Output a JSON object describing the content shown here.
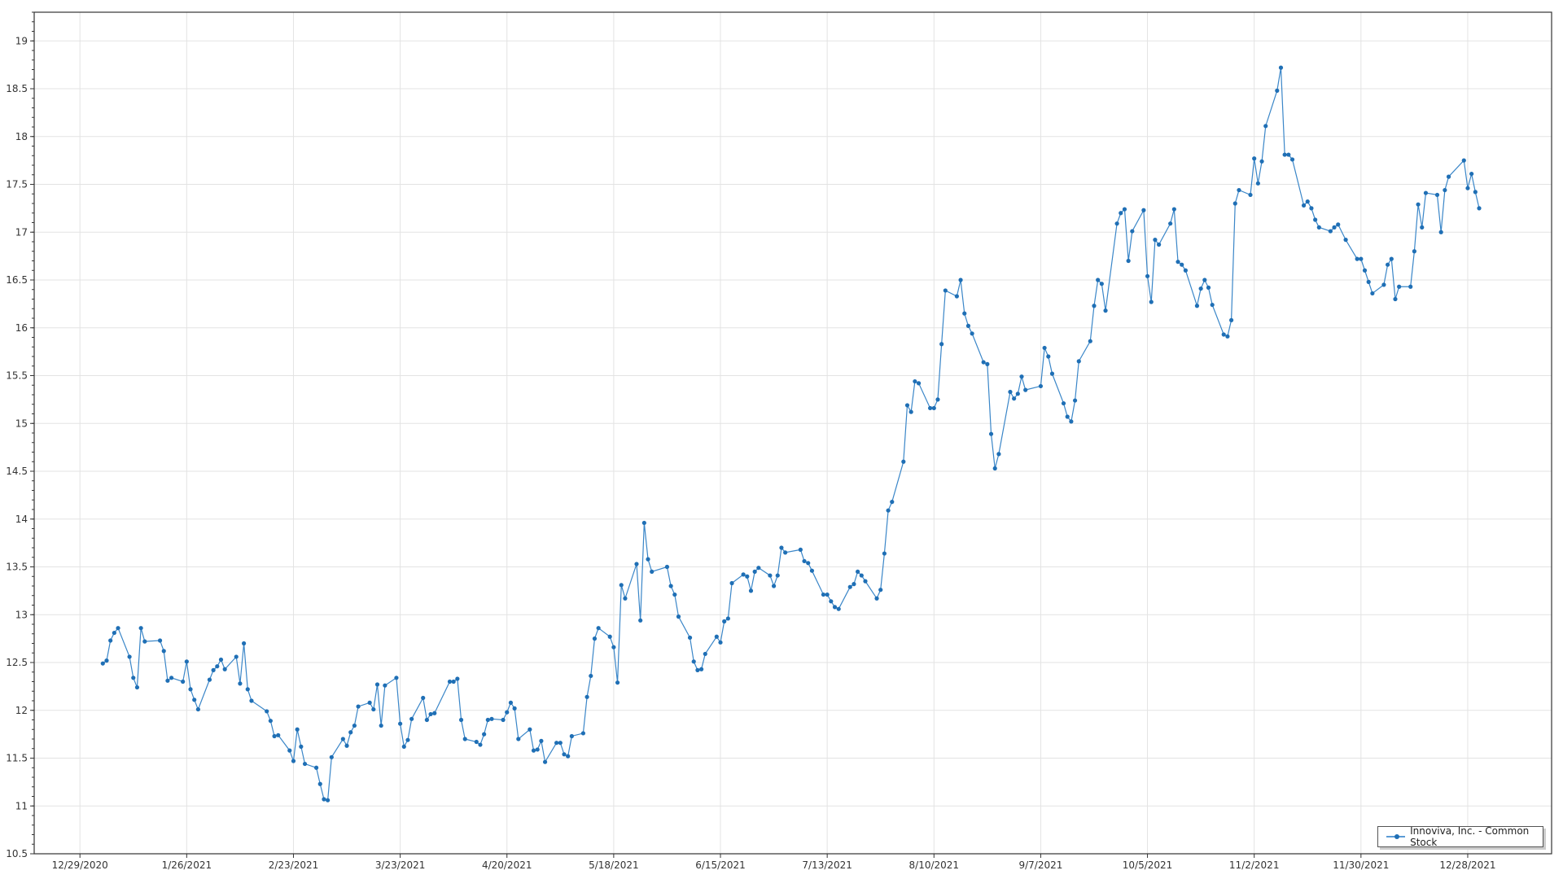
{
  "chart_data": {
    "type": "line",
    "title": "",
    "xlabel": "",
    "ylabel": "",
    "xlim": [
      "2020-12-17",
      "2022-01-19"
    ],
    "ylim": [
      10.5,
      19.3
    ],
    "grid": true,
    "legend_position": "bottom-right",
    "x_tick_labels": [
      "12/29/2020",
      "1/26/2021",
      "2/23/2021",
      "3/23/2021",
      "4/20/2021",
      "5/18/2021",
      "6/15/2021",
      "7/13/2021",
      "8/10/2021",
      "9/7/2021",
      "10/5/2021",
      "11/2/2021",
      "11/30/2021",
      "12/28/2021"
    ],
    "y_tick_labels": [
      "10.5",
      "11",
      "11.5",
      "12",
      "12.5",
      "13",
      "13.5",
      "14",
      "14.5",
      "15",
      "15.5",
      "16",
      "16.5",
      "17",
      "17.5",
      "18",
      "18.5",
      "19"
    ],
    "colors": {
      "line": "#3a86c8",
      "marker": "#1f6fb5",
      "grid": "#e3e3e3",
      "axis": "#333333"
    },
    "series": [
      {
        "name": "Innoviva, Inc. - Common Stock",
        "points": [
          [
            "2021-01-04",
            12.49
          ],
          [
            "2021-01-05",
            12.52
          ],
          [
            "2021-01-06",
            12.73
          ],
          [
            "2021-01-07",
            12.81
          ],
          [
            "2021-01-08",
            12.86
          ],
          [
            "2021-01-11",
            12.56
          ],
          [
            "2021-01-12",
            12.34
          ],
          [
            "2021-01-13",
            12.24
          ],
          [
            "2021-01-14",
            12.86
          ],
          [
            "2021-01-15",
            12.72
          ],
          [
            "2021-01-19",
            12.73
          ],
          [
            "2021-01-20",
            12.62
          ],
          [
            "2021-01-21",
            12.31
          ],
          [
            "2021-01-22",
            12.34
          ],
          [
            "2021-01-25",
            12.3
          ],
          [
            "2021-01-26",
            12.51
          ],
          [
            "2021-01-27",
            12.22
          ],
          [
            "2021-01-28",
            12.11
          ],
          [
            "2021-01-29",
            12.01
          ],
          [
            "2021-02-01",
            12.32
          ],
          [
            "2021-02-02",
            12.42
          ],
          [
            "2021-02-03",
            12.46
          ],
          [
            "2021-02-04",
            12.53
          ],
          [
            "2021-02-05",
            12.43
          ],
          [
            "2021-02-08",
            12.56
          ],
          [
            "2021-02-09",
            12.28
          ],
          [
            "2021-02-10",
            12.7
          ],
          [
            "2021-02-11",
            12.22
          ],
          [
            "2021-02-12",
            12.1
          ],
          [
            "2021-02-16",
            11.99
          ],
          [
            "2021-02-17",
            11.89
          ],
          [
            "2021-02-18",
            11.73
          ],
          [
            "2021-02-19",
            11.74
          ],
          [
            "2021-02-22",
            11.58
          ],
          [
            "2021-02-23",
            11.47
          ],
          [
            "2021-02-24",
            11.8
          ],
          [
            "2021-02-25",
            11.62
          ],
          [
            "2021-02-26",
            11.44
          ],
          [
            "2021-03-01",
            11.4
          ],
          [
            "2021-03-02",
            11.23
          ],
          [
            "2021-03-03",
            11.07
          ],
          [
            "2021-03-04",
            11.06
          ],
          [
            "2021-03-05",
            11.51
          ],
          [
            "2021-03-08",
            11.7
          ],
          [
            "2021-03-09",
            11.63
          ],
          [
            "2021-03-10",
            11.77
          ],
          [
            "2021-03-11",
            11.84
          ],
          [
            "2021-03-12",
            12.04
          ],
          [
            "2021-03-15",
            12.08
          ],
          [
            "2021-03-16",
            12.01
          ],
          [
            "2021-03-17",
            12.27
          ],
          [
            "2021-03-18",
            11.84
          ],
          [
            "2021-03-19",
            12.26
          ],
          [
            "2021-03-22",
            12.34
          ],
          [
            "2021-03-23",
            11.86
          ],
          [
            "2021-03-24",
            11.62
          ],
          [
            "2021-03-25",
            11.69
          ],
          [
            "2021-03-26",
            11.91
          ],
          [
            "2021-03-29",
            12.13
          ],
          [
            "2021-03-30",
            11.9
          ],
          [
            "2021-03-31",
            11.96
          ],
          [
            "2021-04-01",
            11.97
          ],
          [
            "2021-04-05",
            12.3
          ],
          [
            "2021-04-06",
            12.3
          ],
          [
            "2021-04-07",
            12.33
          ],
          [
            "2021-04-08",
            11.9
          ],
          [
            "2021-04-09",
            11.7
          ],
          [
            "2021-04-12",
            11.67
          ],
          [
            "2021-04-13",
            11.64
          ],
          [
            "2021-04-14",
            11.75
          ],
          [
            "2021-04-15",
            11.9
          ],
          [
            "2021-04-16",
            11.91
          ],
          [
            "2021-04-19",
            11.9
          ],
          [
            "2021-04-20",
            11.98
          ],
          [
            "2021-04-21",
            12.08
          ],
          [
            "2021-04-22",
            12.02
          ],
          [
            "2021-04-23",
            11.7
          ],
          [
            "2021-04-26",
            11.8
          ],
          [
            "2021-04-27",
            11.58
          ],
          [
            "2021-04-28",
            11.59
          ],
          [
            "2021-04-29",
            11.68
          ],
          [
            "2021-04-30",
            11.46
          ],
          [
            "2021-05-03",
            11.66
          ],
          [
            "2021-05-04",
            11.66
          ],
          [
            "2021-05-05",
            11.54
          ],
          [
            "2021-05-06",
            11.52
          ],
          [
            "2021-05-07",
            11.73
          ],
          [
            "2021-05-10",
            11.76
          ],
          [
            "2021-05-11",
            12.14
          ],
          [
            "2021-05-12",
            12.36
          ],
          [
            "2021-05-13",
            12.75
          ],
          [
            "2021-05-14",
            12.86
          ],
          [
            "2021-05-17",
            12.77
          ],
          [
            "2021-05-18",
            12.66
          ],
          [
            "2021-05-19",
            12.29
          ],
          [
            "2021-05-20",
            13.31
          ],
          [
            "2021-05-21",
            13.17
          ],
          [
            "2021-05-24",
            13.53
          ],
          [
            "2021-05-25",
            12.94
          ],
          [
            "2021-05-26",
            13.96
          ],
          [
            "2021-05-27",
            13.58
          ],
          [
            "2021-05-28",
            13.45
          ],
          [
            "2021-06-01",
            13.5
          ],
          [
            "2021-06-02",
            13.3
          ],
          [
            "2021-06-03",
            13.21
          ],
          [
            "2021-06-04",
            12.98
          ],
          [
            "2021-06-07",
            12.76
          ],
          [
            "2021-06-08",
            12.51
          ],
          [
            "2021-06-09",
            12.42
          ],
          [
            "2021-06-10",
            12.43
          ],
          [
            "2021-06-11",
            12.59
          ],
          [
            "2021-06-14",
            12.77
          ],
          [
            "2021-06-15",
            12.71
          ],
          [
            "2021-06-16",
            12.93
          ],
          [
            "2021-06-17",
            12.96
          ],
          [
            "2021-06-18",
            13.33
          ],
          [
            "2021-06-21",
            13.42
          ],
          [
            "2021-06-22",
            13.4
          ],
          [
            "2021-06-23",
            13.25
          ],
          [
            "2021-06-24",
            13.45
          ],
          [
            "2021-06-25",
            13.49
          ],
          [
            "2021-06-28",
            13.41
          ],
          [
            "2021-06-29",
            13.3
          ],
          [
            "2021-06-30",
            13.41
          ],
          [
            "2021-07-01",
            13.7
          ],
          [
            "2021-07-02",
            13.65
          ],
          [
            "2021-07-06",
            13.68
          ],
          [
            "2021-07-07",
            13.56
          ],
          [
            "2021-07-08",
            13.54
          ],
          [
            "2021-07-09",
            13.46
          ],
          [
            "2021-07-12",
            13.21
          ],
          [
            "2021-07-13",
            13.21
          ],
          [
            "2021-07-14",
            13.14
          ],
          [
            "2021-07-15",
            13.08
          ],
          [
            "2021-07-16",
            13.06
          ],
          [
            "2021-07-19",
            13.29
          ],
          [
            "2021-07-20",
            13.32
          ],
          [
            "2021-07-21",
            13.45
          ],
          [
            "2021-07-22",
            13.41
          ],
          [
            "2021-07-23",
            13.35
          ],
          [
            "2021-07-26",
            13.17
          ],
          [
            "2021-07-27",
            13.26
          ],
          [
            "2021-07-28",
            13.64
          ],
          [
            "2021-07-29",
            14.09
          ],
          [
            "2021-07-30",
            14.18
          ],
          [
            "2021-08-02",
            14.6
          ],
          [
            "2021-08-03",
            15.19
          ],
          [
            "2021-08-04",
            15.12
          ],
          [
            "2021-08-05",
            15.44
          ],
          [
            "2021-08-06",
            15.42
          ],
          [
            "2021-08-09",
            15.16
          ],
          [
            "2021-08-10",
            15.16
          ],
          [
            "2021-08-11",
            15.25
          ],
          [
            "2021-08-12",
            15.83
          ],
          [
            "2021-08-13",
            16.39
          ],
          [
            "2021-08-16",
            16.33
          ],
          [
            "2021-08-17",
            16.5
          ],
          [
            "2021-08-18",
            16.15
          ],
          [
            "2021-08-19",
            16.02
          ],
          [
            "2021-08-20",
            15.94
          ],
          [
            "2021-08-23",
            15.64
          ],
          [
            "2021-08-24",
            15.62
          ],
          [
            "2021-08-25",
            14.89
          ],
          [
            "2021-08-26",
            14.53
          ],
          [
            "2021-08-27",
            14.68
          ],
          [
            "2021-08-30",
            15.33
          ],
          [
            "2021-08-31",
            15.26
          ],
          [
            "2021-09-01",
            15.31
          ],
          [
            "2021-09-02",
            15.49
          ],
          [
            "2021-09-03",
            15.35
          ],
          [
            "2021-09-07",
            15.39
          ],
          [
            "2021-09-08",
            15.79
          ],
          [
            "2021-09-09",
            15.7
          ],
          [
            "2021-09-10",
            15.52
          ],
          [
            "2021-09-13",
            15.21
          ],
          [
            "2021-09-14",
            15.07
          ],
          [
            "2021-09-15",
            15.02
          ],
          [
            "2021-09-16",
            15.24
          ],
          [
            "2021-09-17",
            15.65
          ],
          [
            "2021-09-20",
            15.86
          ],
          [
            "2021-09-21",
            16.23
          ],
          [
            "2021-09-22",
            16.5
          ],
          [
            "2021-09-23",
            16.46
          ],
          [
            "2021-09-24",
            16.18
          ],
          [
            "2021-09-27",
            17.09
          ],
          [
            "2021-09-28",
            17.2
          ],
          [
            "2021-09-29",
            17.24
          ],
          [
            "2021-09-30",
            16.7
          ],
          [
            "2021-10-01",
            17.01
          ],
          [
            "2021-10-04",
            17.23
          ],
          [
            "2021-10-05",
            16.54
          ],
          [
            "2021-10-06",
            16.27
          ],
          [
            "2021-10-07",
            16.92
          ],
          [
            "2021-10-08",
            16.87
          ],
          [
            "2021-10-11",
            17.09
          ],
          [
            "2021-10-12",
            17.24
          ],
          [
            "2021-10-13",
            16.69
          ],
          [
            "2021-10-14",
            16.66
          ],
          [
            "2021-10-15",
            16.6
          ],
          [
            "2021-10-18",
            16.23
          ],
          [
            "2021-10-19",
            16.41
          ],
          [
            "2021-10-20",
            16.5
          ],
          [
            "2021-10-21",
            16.42
          ],
          [
            "2021-10-22",
            16.24
          ],
          [
            "2021-10-25",
            15.93
          ],
          [
            "2021-10-26",
            15.91
          ],
          [
            "2021-10-27",
            16.08
          ],
          [
            "2021-10-28",
            17.3
          ],
          [
            "2021-10-29",
            17.44
          ],
          [
            "2021-11-01",
            17.39
          ],
          [
            "2021-11-02",
            17.77
          ],
          [
            "2021-11-03",
            17.51
          ],
          [
            "2021-11-04",
            17.74
          ],
          [
            "2021-11-05",
            18.11
          ],
          [
            "2021-11-08",
            18.48
          ],
          [
            "2021-11-09",
            18.72
          ],
          [
            "2021-11-10",
            17.81
          ],
          [
            "2021-11-11",
            17.81
          ],
          [
            "2021-11-12",
            17.76
          ],
          [
            "2021-11-15",
            17.28
          ],
          [
            "2021-11-16",
            17.32
          ],
          [
            "2021-11-17",
            17.25
          ],
          [
            "2021-11-18",
            17.13
          ],
          [
            "2021-11-19",
            17.05
          ],
          [
            "2021-11-22",
            17.01
          ],
          [
            "2021-11-23",
            17.05
          ],
          [
            "2021-11-24",
            17.08
          ],
          [
            "2021-11-26",
            16.92
          ],
          [
            "2021-11-29",
            16.72
          ],
          [
            "2021-11-30",
            16.72
          ],
          [
            "2021-12-01",
            16.6
          ],
          [
            "2021-12-02",
            16.48
          ],
          [
            "2021-12-03",
            16.36
          ],
          [
            "2021-12-06",
            16.45
          ],
          [
            "2021-12-07",
            16.66
          ],
          [
            "2021-12-08",
            16.72
          ],
          [
            "2021-12-09",
            16.3
          ],
          [
            "2021-12-10",
            16.43
          ],
          [
            "2021-12-13",
            16.43
          ],
          [
            "2021-12-14",
            16.8
          ],
          [
            "2021-12-15",
            17.29
          ],
          [
            "2021-12-16",
            17.05
          ],
          [
            "2021-12-17",
            17.41
          ],
          [
            "2021-12-20",
            17.39
          ],
          [
            "2021-12-21",
            17.0
          ],
          [
            "2021-12-22",
            17.44
          ],
          [
            "2021-12-23",
            17.58
          ],
          [
            "2021-12-27",
            17.75
          ],
          [
            "2021-12-28",
            17.46
          ],
          [
            "2021-12-29",
            17.61
          ],
          [
            "2021-12-30",
            17.42
          ],
          [
            "2021-12-31",
            17.25
          ]
        ]
      }
    ]
  }
}
